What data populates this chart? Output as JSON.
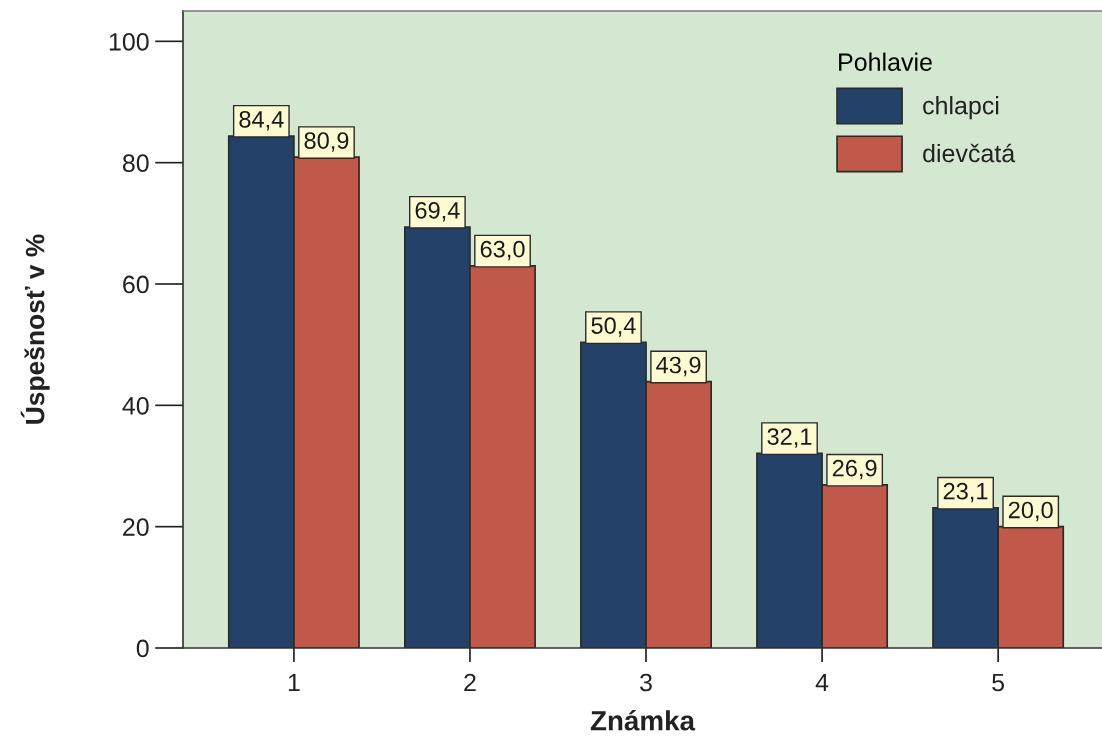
{
  "chart_data": {
    "type": "bar",
    "xlabel": "Známka",
    "ylabel": "Úspešnosť v %",
    "legend_title": "Pohlavie",
    "categories": [
      "1",
      "2",
      "3",
      "4",
      "5"
    ],
    "series": [
      {
        "name": "chlapci",
        "color": "#24416a",
        "values": [
          84.4,
          69.4,
          50.4,
          32.1,
          23.1
        ],
        "value_labels": [
          "84,4",
          "69,4",
          "50,4",
          "32,1",
          "23,1"
        ]
      },
      {
        "name": "dievčatá",
        "color": "#c0594a",
        "values": [
          80.9,
          63.0,
          43.9,
          26.9,
          20.0
        ],
        "value_labels": [
          "80,9",
          "63,0",
          "43,9",
          "26,9",
          "20,0"
        ]
      }
    ],
    "ylim": [
      0,
      105
    ],
    "yticks": [
      0,
      20,
      40,
      60,
      80,
      100
    ],
    "legend": "top right",
    "grid": false
  }
}
